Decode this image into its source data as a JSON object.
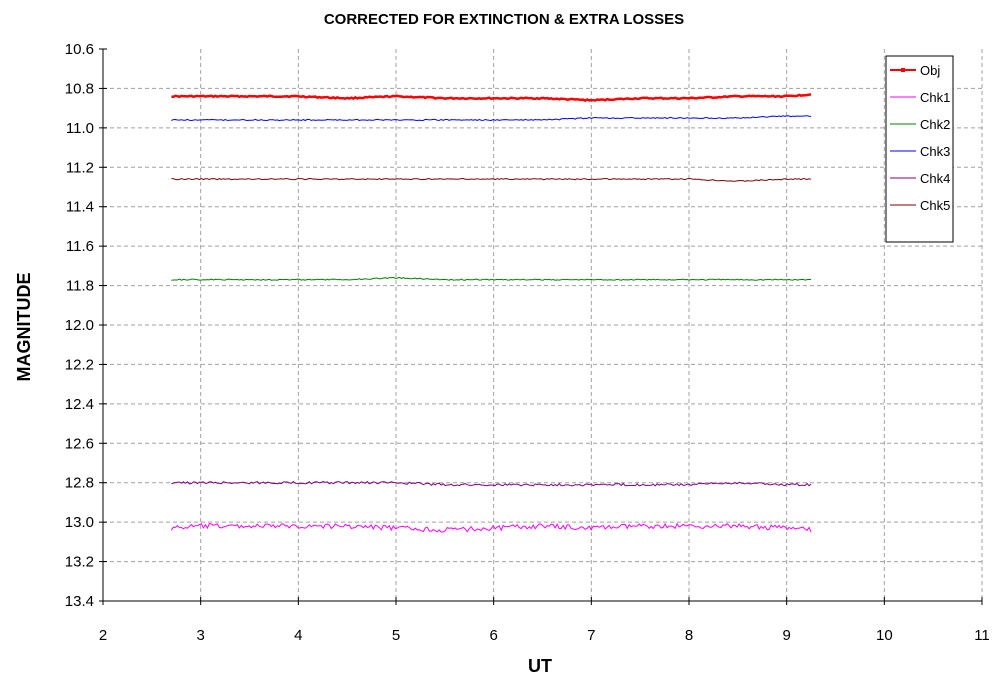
{
  "chart_data": {
    "type": "line",
    "title": "CORRECTED FOR EXTINCTION & EXTRA LOSSES",
    "xlabel": "UT",
    "ylabel": "MAGNITUDE",
    "xlim": [
      2,
      11
    ],
    "ylim": [
      10.6,
      13.4
    ],
    "y_inverted": true,
    "x_ticks": [
      "2",
      "3",
      "4",
      "5",
      "6",
      "7",
      "8",
      "9",
      "10",
      "11"
    ],
    "y_ticks": [
      "10.6",
      "10.8",
      "11.0",
      "11.2",
      "11.4",
      "11.6",
      "11.8",
      "12.0",
      "12.2",
      "12.4",
      "12.6",
      "12.8",
      "13.0",
      "13.2",
      "13.4"
    ],
    "grid": true,
    "legend_position": "top-right",
    "x": [
      2.7,
      3.0,
      3.5,
      4.0,
      4.5,
      5.0,
      5.5,
      6.0,
      6.5,
      7.0,
      7.5,
      8.0,
      8.5,
      9.0,
      9.25
    ],
    "series": [
      {
        "name": "Obj",
        "color": "#ff0000",
        "marker": true,
        "values": [
          10.84,
          10.84,
          10.84,
          10.84,
          10.85,
          10.84,
          10.85,
          10.85,
          10.85,
          10.86,
          10.85,
          10.85,
          10.84,
          10.84,
          10.83
        ]
      },
      {
        "name": "Chk1",
        "color": "#ff00ff",
        "marker": false,
        "values": [
          13.03,
          13.02,
          13.02,
          13.02,
          13.02,
          13.03,
          13.04,
          13.03,
          13.02,
          13.03,
          13.02,
          13.02,
          13.02,
          13.03,
          13.04
        ]
      },
      {
        "name": "Chk2",
        "color": "#008000",
        "marker": false,
        "values": [
          11.77,
          11.77,
          11.77,
          11.77,
          11.77,
          11.76,
          11.77,
          11.77,
          11.77,
          11.77,
          11.77,
          11.77,
          11.77,
          11.77,
          11.77
        ]
      },
      {
        "name": "Chk3",
        "color": "#0000ff",
        "marker": false,
        "values": [
          10.96,
          10.96,
          10.96,
          10.96,
          10.96,
          10.96,
          10.96,
          10.96,
          10.96,
          10.95,
          10.95,
          10.95,
          10.95,
          10.94,
          10.94
        ]
      },
      {
        "name": "Chk4",
        "color": "#800080",
        "marker": false,
        "values": [
          12.8,
          12.8,
          12.8,
          12.8,
          12.8,
          12.8,
          12.81,
          12.81,
          12.81,
          12.81,
          12.81,
          12.81,
          12.8,
          12.81,
          12.81
        ]
      },
      {
        "name": "Chk5",
        "color": "#800000",
        "marker": false,
        "values": [
          11.26,
          11.26,
          11.26,
          11.26,
          11.26,
          11.26,
          11.26,
          11.26,
          11.26,
          11.26,
          11.26,
          11.26,
          11.27,
          11.26,
          11.26
        ]
      }
    ]
  }
}
